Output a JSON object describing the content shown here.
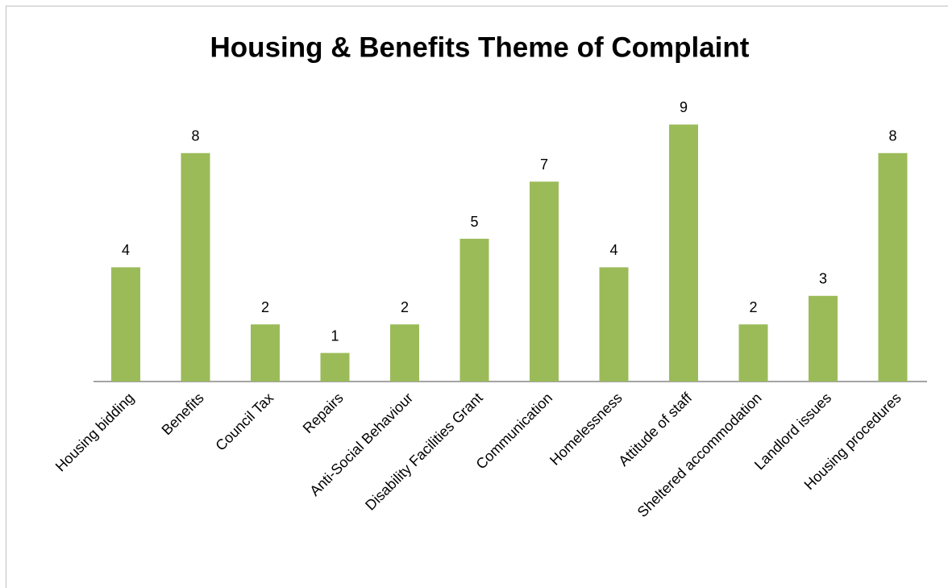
{
  "chart_data": {
    "type": "bar",
    "title": "Housing & Benefits Theme of Complaint",
    "categories": [
      "Housing bidding",
      "Benefits",
      "Council Tax",
      "Repairs",
      "Anti-Social Behaviour",
      "Disability Facilities Grant",
      "Communication",
      "Homelessness",
      "Attitude of staff",
      "Sheltered accommodation",
      "Landlord issues",
      "Housing procedures"
    ],
    "values": [
      4,
      8,
      2,
      1,
      2,
      5,
      7,
      4,
      9,
      2,
      3,
      8
    ],
    "color": "#9bbb59",
    "ylim": [
      0,
      10
    ],
    "grid": false
  }
}
